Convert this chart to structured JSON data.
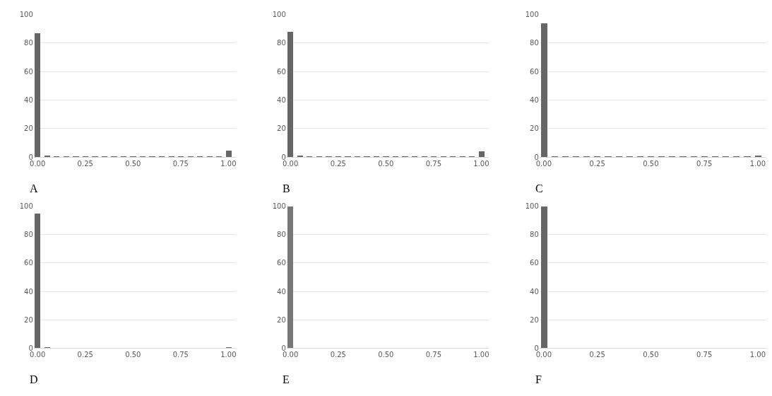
{
  "chart_data": [
    {
      "type": "bar",
      "title": "A",
      "x": [
        0,
        0.05,
        0.1,
        0.15,
        0.2,
        0.25,
        0.3,
        0.35,
        0.4,
        0.45,
        0.5,
        0.55,
        0.6,
        0.65,
        0.7,
        0.75,
        0.8,
        0.85,
        0.9,
        0.95,
        1.0
      ],
      "values": [
        87,
        1.5,
        0.3,
        0.3,
        0.3,
        0.3,
        0.3,
        0.3,
        0.3,
        0.3,
        0.3,
        0.3,
        0.3,
        0.3,
        0.3,
        0.3,
        0.3,
        0.3,
        0.3,
        0.3,
        5
      ],
      "color": "#666666",
      "xlim": [
        -0.02,
        1.04
      ],
      "xticks": [
        {
          "value": 0,
          "label": "0.00"
        },
        {
          "value": 0.25,
          "label": "0.25"
        },
        {
          "value": 0.5,
          "label": "0.50"
        },
        {
          "value": 0.75,
          "label": "0.75"
        },
        {
          "value": 1,
          "label": "1.00"
        }
      ],
      "ylim": [
        0,
        100
      ],
      "yticks": [
        0,
        20,
        40,
        60,
        80,
        100
      ],
      "grid": "y"
    },
    {
      "type": "bar",
      "title": "B",
      "x": [
        0,
        0.05,
        0.1,
        0.15,
        0.2,
        0.25,
        0.3,
        0.35,
        0.4,
        0.45,
        0.5,
        0.55,
        0.6,
        0.65,
        0.7,
        0.75,
        0.8,
        0.85,
        0.9,
        0.95,
        1.0
      ],
      "values": [
        88,
        1.5,
        0.3,
        0.3,
        0.3,
        0.3,
        0.3,
        0.3,
        0.3,
        0.3,
        0.3,
        0.3,
        0.3,
        0.3,
        0.3,
        0.3,
        0.3,
        0.3,
        0.3,
        0.3,
        4.5
      ],
      "color": "#666666",
      "xlim": [
        -0.02,
        1.04
      ],
      "xticks": [
        {
          "value": 0,
          "label": "0.00"
        },
        {
          "value": 0.25,
          "label": "0.25"
        },
        {
          "value": 0.5,
          "label": "0.50"
        },
        {
          "value": 0.75,
          "label": "0.75"
        },
        {
          "value": 1,
          "label": "1.00"
        }
      ],
      "ylim": [
        0,
        100
      ],
      "yticks": [
        0,
        20,
        40,
        60,
        80,
        100
      ],
      "grid": "y"
    },
    {
      "type": "bar",
      "title": "C",
      "x": [
        0,
        0.05,
        0.1,
        0.15,
        0.2,
        0.25,
        0.3,
        0.35,
        0.4,
        0.45,
        0.5,
        0.55,
        0.6,
        0.65,
        0.7,
        0.75,
        0.8,
        0.85,
        0.9,
        0.95,
        1.0
      ],
      "values": [
        94,
        1,
        0.3,
        0.3,
        0.3,
        0.3,
        0.3,
        0.3,
        0.3,
        0.3,
        0.3,
        0.3,
        0.3,
        0.3,
        0.3,
        0.3,
        0.3,
        0.3,
        0.3,
        0.3,
        1.5
      ],
      "color": "#666666",
      "xlim": [
        -0.02,
        1.04
      ],
      "xticks": [
        {
          "value": 0,
          "label": "0.00"
        },
        {
          "value": 0.25,
          "label": "0.25"
        },
        {
          "value": 0.5,
          "label": "0.50"
        },
        {
          "value": 0.75,
          "label": "0.75"
        },
        {
          "value": 1,
          "label": "1.00"
        }
      ],
      "ylim": [
        0,
        100
      ],
      "yticks": [
        0,
        20,
        40,
        60,
        80,
        100
      ],
      "grid": "y"
    },
    {
      "type": "bar",
      "title": "D",
      "x": [
        0,
        0.05,
        0.1,
        0.15,
        0.2,
        0.25,
        0.3,
        0.35,
        0.4,
        0.45,
        0.5,
        0.55,
        0.6,
        0.65,
        0.7,
        0.75,
        0.8,
        0.85,
        0.9,
        0.95,
        1.0
      ],
      "values": [
        95,
        0.5,
        0,
        0,
        0,
        0,
        0,
        0,
        0,
        0,
        0,
        0,
        0,
        0,
        0,
        0,
        0,
        0,
        0,
        0,
        1
      ],
      "color": "#666666",
      "xlim": [
        -0.02,
        1.04
      ],
      "xticks": [
        {
          "value": 0,
          "label": "0.00"
        },
        {
          "value": 0.25,
          "label": "0.25"
        },
        {
          "value": 0.5,
          "label": "0.50"
        },
        {
          "value": 0.75,
          "label": "0.75"
        },
        {
          "value": 1,
          "label": "1.00"
        }
      ],
      "ylim": [
        0,
        100
      ],
      "yticks": [
        0,
        20,
        40,
        60,
        80,
        100
      ],
      "grid": "y"
    },
    {
      "type": "bar",
      "title": "E",
      "x": [
        0,
        0.05,
        0.1,
        0.15,
        0.2,
        0.25,
        0.3,
        0.35,
        0.4,
        0.45,
        0.5,
        0.55,
        0.6,
        0.65,
        0.7,
        0.75,
        0.8,
        0.85,
        0.9,
        0.95,
        1.0
      ],
      "values": [
        100,
        0,
        0,
        0,
        0,
        0,
        0,
        0,
        0,
        0,
        0,
        0,
        0,
        0,
        0,
        0,
        0,
        0,
        0,
        0,
        0
      ],
      "color": "#777777",
      "xlim": [
        -0.02,
        1.04
      ],
      "xticks": [
        {
          "value": 0,
          "label": "0.00"
        },
        {
          "value": 0.25,
          "label": "0.25"
        },
        {
          "value": 0.5,
          "label": "0.50"
        },
        {
          "value": 0.75,
          "label": "0.75"
        },
        {
          "value": 1,
          "label": "1.00"
        }
      ],
      "ylim": [
        0,
        100
      ],
      "yticks": [
        0,
        20,
        40,
        60,
        80,
        100
      ],
      "grid": "y"
    },
    {
      "type": "bar",
      "title": "F",
      "x": [
        0,
        0.05,
        0.1,
        0.15,
        0.2,
        0.25,
        0.3,
        0.35,
        0.4,
        0.45,
        0.5,
        0.55,
        0.6,
        0.65,
        0.7,
        0.75,
        0.8,
        0.85,
        0.9,
        0.95,
        1.0
      ],
      "values": [
        100,
        0,
        0,
        0,
        0,
        0,
        0,
        0,
        0,
        0,
        0,
        0,
        0,
        0,
        0,
        0,
        0,
        0,
        0,
        0,
        0
      ],
      "color": "#666666",
      "xlim": [
        -0.02,
        1.04
      ],
      "xticks": [
        {
          "value": 0,
          "label": "0.00"
        },
        {
          "value": 0.25,
          "label": "0.25"
        },
        {
          "value": 0.5,
          "label": "0.50"
        },
        {
          "value": 0.75,
          "label": "0.75"
        },
        {
          "value": 1,
          "label": "1.00"
        }
      ],
      "ylim": [
        0,
        100
      ],
      "yticks": [
        0,
        20,
        40,
        60,
        80,
        100
      ],
      "grid": "y"
    }
  ]
}
